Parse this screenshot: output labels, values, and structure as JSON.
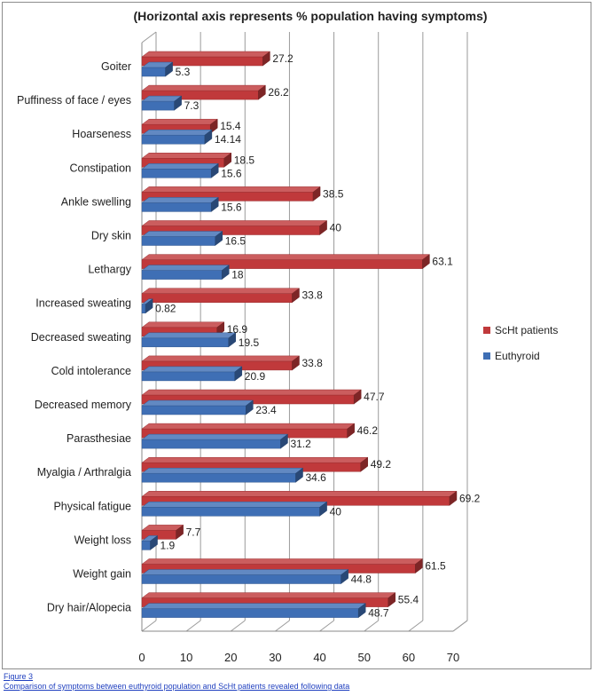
{
  "chart_data": {
    "type": "bar",
    "orientation": "horizontal",
    "style": "3d",
    "title": "(Horizontal axis represents % population having symptoms)",
    "xlabel": "",
    "ylabel": "",
    "xlim": [
      0,
      70
    ],
    "x_ticks": [
      0,
      10,
      20,
      30,
      40,
      50,
      60,
      70
    ],
    "categories": [
      "Goiter",
      "Puffiness of face / eyes",
      "Hoarseness",
      "Constipation",
      "Ankle swelling",
      "Dry skin",
      "Lethargy",
      "Increased sweating",
      "Decreased sweating",
      "Cold intolerance",
      "Decreased memory",
      "Parasthesiae",
      "Myalgia / Arthralgia",
      "Physical fatigue",
      "Weight loss",
      "Weight gain",
      "Dry hair/Alopecia"
    ],
    "series": [
      {
        "name": "ScHt patients",
        "color": "#c0393b",
        "values": [
          27.2,
          26.2,
          15.4,
          18.5,
          38.5,
          40,
          63.1,
          33.8,
          16.9,
          33.8,
          47.7,
          46.2,
          49.2,
          69.2,
          7.7,
          61.5,
          55.4
        ],
        "labels": [
          "27.2",
          "26.2",
          "15.4",
          "18.5",
          "38.5",
          "40",
          "63.1",
          "33.8",
          "16.9",
          "33.8",
          "47.7",
          "46.2",
          "49.2",
          "69.2",
          "7.7",
          "61.5",
          "55.4"
        ]
      },
      {
        "name": "Euthyroid",
        "color": "#3f6fb5",
        "values": [
          5.3,
          7.3,
          14.14,
          15.6,
          15.6,
          16.5,
          18,
          0.82,
          19.5,
          20.9,
          23.4,
          31.2,
          34.6,
          40,
          1.9,
          44.8,
          48.7
        ],
        "labels": [
          "5.3",
          "7.3",
          "14.14",
          "15.6",
          "15.6",
          "16.5",
          "18",
          "0.82",
          "19.5",
          "20.9",
          "23.4",
          "31.2",
          "34.6",
          "40",
          "1.9",
          "44.8",
          "48.7"
        ]
      }
    ],
    "legend_position": "right",
    "grid": true
  },
  "caption": {
    "label": "Figure 3",
    "text": "Comparison of symptoms between euthyroid population and ScHt patients revealed following data"
  }
}
